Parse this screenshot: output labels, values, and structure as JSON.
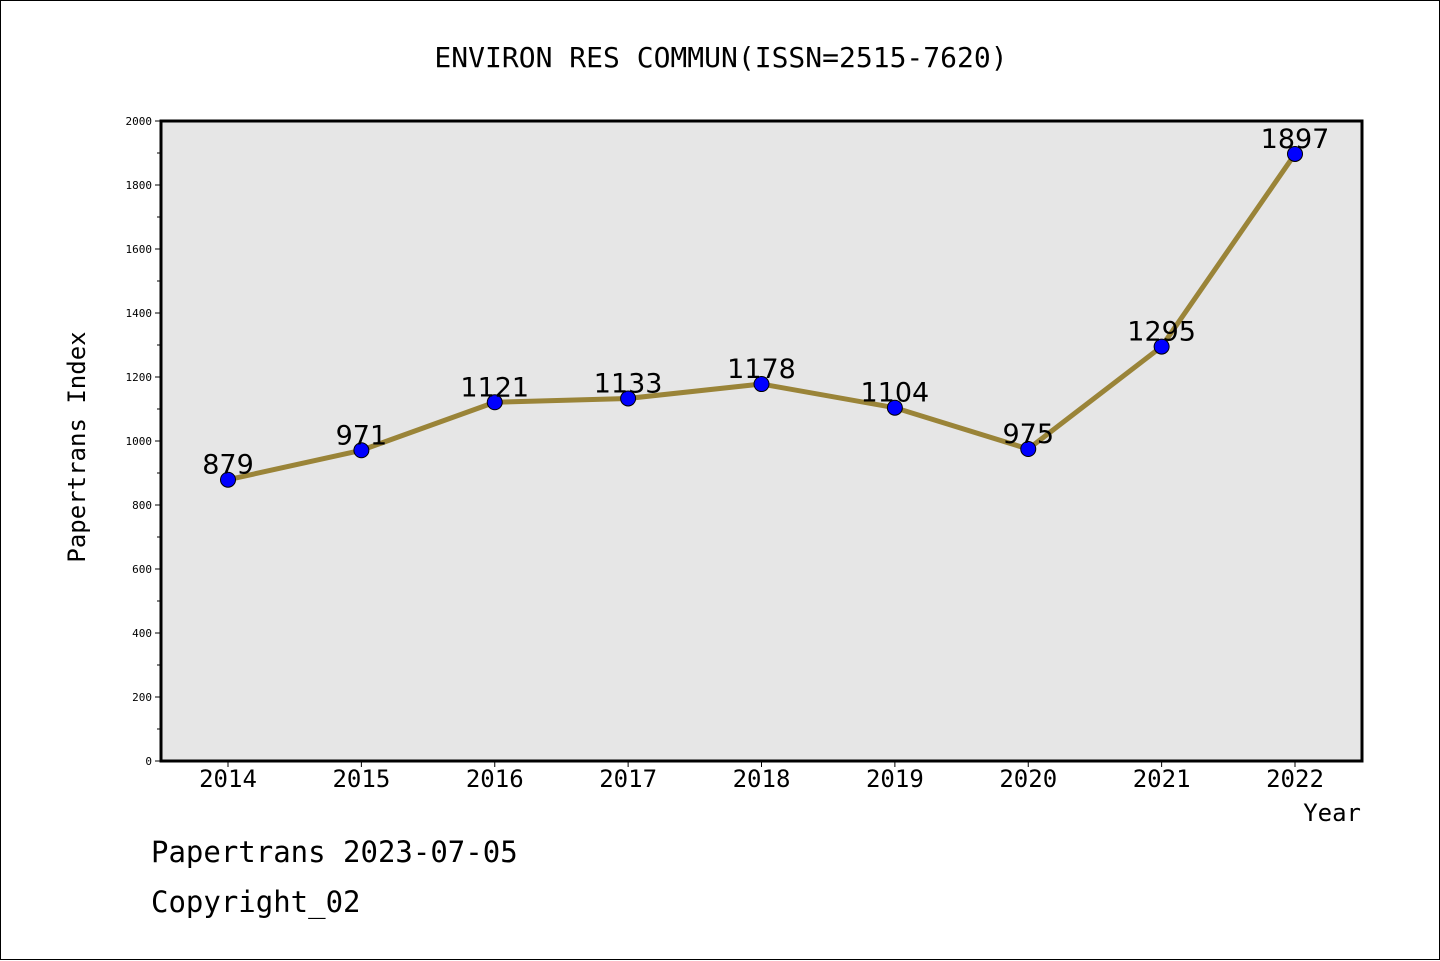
{
  "chart_data": {
    "type": "line",
    "title": "ENVIRON RES COMMUN(ISSN=2515-7620)",
    "xlabel": "Year",
    "ylabel": "Papertrans Index",
    "categories": [
      "2014",
      "2015",
      "2016",
      "2017",
      "2018",
      "2019",
      "2020",
      "2021",
      "2022"
    ],
    "values": [
      879,
      971,
      1121,
      1133,
      1178,
      1104,
      975,
      1295,
      1897
    ],
    "ylim": [
      0,
      2000
    ],
    "yticks": [
      0,
      200,
      400,
      600,
      800,
      1000,
      1200,
      1400,
      1600,
      1800,
      2000
    ],
    "grid": false,
    "data_labels": true,
    "colors": {
      "line": "#9a8438",
      "marker": "#0000ff",
      "plot_background": "#e6e6e6"
    }
  },
  "footer": {
    "line1": "Papertrans 2023-07-05",
    "line2": "Copyright_02"
  }
}
